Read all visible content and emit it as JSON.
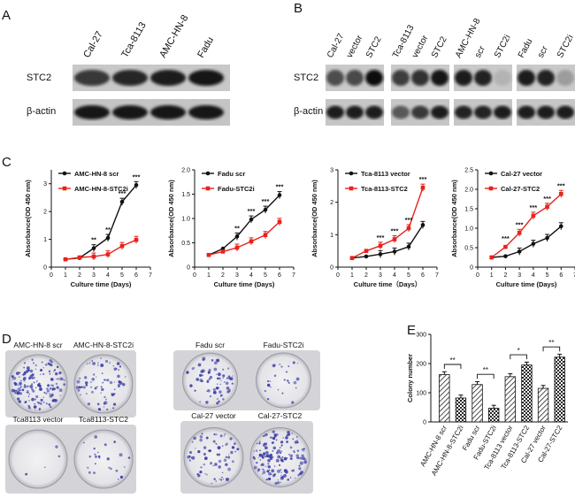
{
  "panels": {
    "A": "A",
    "B": "B",
    "C": "C",
    "D": "D",
    "E": "E"
  },
  "panel_a": {
    "lanes": [
      "Cal-27",
      "Tca-8113",
      "AMC-HN-8",
      "Fadu"
    ],
    "rows": [
      "STC2",
      "β-actin"
    ]
  },
  "panel_b": {
    "groups": [
      {
        "lanes": [
          "Cal-27",
          "vector",
          "STC2"
        ]
      },
      {
        "lanes": [
          "Tca-8113",
          "vector",
          "STC2"
        ]
      },
      {
        "lanes": [
          "AMC-HN-8",
          "scr",
          "STC2i"
        ]
      },
      {
        "lanes": [
          "Fadu",
          "scr",
          "STC2i"
        ]
      }
    ],
    "rows": [
      "STC2",
      "β-actin"
    ]
  },
  "chart_data": [
    {
      "type": "line",
      "xlabel": "Culture time (Days)",
      "ylabel": "Absorbance(OD 450 nm)",
      "xlim": [
        0,
        7
      ],
      "ylim": [
        0,
        3.5
      ],
      "yticks": [
        "0",
        "1",
        "2",
        "3"
      ],
      "x": [
        1,
        2,
        3,
        4,
        5,
        6
      ],
      "series": [
        {
          "name": "AMC-HN-8 scr",
          "color": "#111111",
          "values": [
            0.28,
            0.33,
            0.68,
            1.05,
            2.35,
            2.95
          ]
        },
        {
          "name": "AMC-HN-8-STC2i",
          "color": "#e8221c",
          "values": [
            0.28,
            0.35,
            0.38,
            0.46,
            0.76,
            0.98
          ]
        }
      ],
      "significance": [
        {
          "x": 3,
          "label": "**"
        },
        {
          "x": 4,
          "label": "**"
        },
        {
          "x": 5,
          "label": "***"
        },
        {
          "x": 6,
          "label": "***"
        }
      ]
    },
    {
      "type": "line",
      "xlabel": "Culture time (Days)",
      "ylabel": "Absorbance(OD 450 nm)",
      "xlim": [
        0,
        7
      ],
      "ylim": [
        0,
        2.0
      ],
      "yticks": [
        "0",
        "0.5",
        "1.0",
        "1.5",
        "2.0"
      ],
      "x": [
        1,
        2,
        3,
        4,
        5,
        6
      ],
      "series": [
        {
          "name": "Fadu scr",
          "color": "#111111",
          "values": [
            0.25,
            0.38,
            0.63,
            0.98,
            1.18,
            1.48
          ]
        },
        {
          "name": "Fadu-STC2i",
          "color": "#e8221c",
          "values": [
            0.25,
            0.32,
            0.4,
            0.53,
            0.66,
            0.93
          ]
        }
      ],
      "significance": [
        {
          "x": 3,
          "label": "**"
        },
        {
          "x": 4,
          "label": "***"
        },
        {
          "x": 5,
          "label": "***"
        },
        {
          "x": 6,
          "label": "***"
        }
      ]
    },
    {
      "type": "line",
      "xlabel": "Culture time（Days）",
      "ylabel": "Absorbance(OD 450 nm)",
      "xlim": [
        0,
        7
      ],
      "ylim": [
        0,
        3
      ],
      "yticks": [
        "0",
        "1",
        "2",
        "3"
      ],
      "x": [
        1,
        2,
        3,
        4,
        5,
        6
      ],
      "series": [
        {
          "name": "Tca-8113 vector",
          "color": "#111111",
          "values": [
            0.28,
            0.33,
            0.4,
            0.48,
            0.63,
            1.3
          ]
        },
        {
          "name": "Tca-8113-STC2",
          "color": "#e8221c",
          "values": [
            0.28,
            0.5,
            0.66,
            0.86,
            1.2,
            2.45
          ]
        }
      ],
      "significance": [
        {
          "x": 3,
          "label": "***"
        },
        {
          "x": 4,
          "label": "***"
        },
        {
          "x": 5,
          "label": "***"
        },
        {
          "x": 6,
          "label": "***"
        }
      ]
    },
    {
      "type": "line",
      "xlabel": "Culture time (Days)",
      "ylabel": "Absorbance(OD 450 nm)",
      "xlim": [
        0,
        7
      ],
      "ylim": [
        0,
        2.5
      ],
      "yticks": [
        "0",
        "0.5",
        "1.0",
        "1.5",
        "2.0",
        "2.5"
      ],
      "x": [
        1,
        2,
        3,
        4,
        5,
        6
      ],
      "series": [
        {
          "name": "Cal-27 vector",
          "color": "#111111",
          "values": [
            0.25,
            0.28,
            0.4,
            0.6,
            0.75,
            1.05
          ]
        },
        {
          "name": "Cal-27-STC2",
          "color": "#e8221c",
          "values": [
            0.25,
            0.52,
            0.88,
            1.32,
            1.55,
            1.88
          ]
        }
      ],
      "significance": [
        {
          "x": 2,
          "label": "***"
        },
        {
          "x": 3,
          "label": "***"
        },
        {
          "x": 4,
          "label": "***"
        },
        {
          "x": 5,
          "label": "***"
        },
        {
          "x": 6,
          "label": "***"
        }
      ]
    },
    {
      "type": "bar",
      "ylabel": "Colony number",
      "ylim": [
        0,
        300
      ],
      "yticks": [
        "0",
        "100",
        "200",
        "300"
      ],
      "categories": [
        "AMC-HN-8 scr",
        "AMC-HN-8-STC2i",
        "Fadu scr",
        "Fadu-STC2i",
        "Tca-8113 vector",
        "Tca-8113-STC2",
        "Cal-27 vector",
        "Cal-27-STC2"
      ],
      "values": [
        162,
        82,
        128,
        47,
        155,
        195,
        115,
        222
      ],
      "patterns": [
        "hatch",
        "check",
        "hatch",
        "check",
        "hatch",
        "check",
        "hatch",
        "check"
      ],
      "significance": [
        {
          "pair": [
            0,
            1
          ],
          "label": "**"
        },
        {
          "pair": [
            2,
            3
          ],
          "label": "**"
        },
        {
          "pair": [
            4,
            5
          ],
          "label": "*"
        },
        {
          "pair": [
            6,
            7
          ],
          "label": "**"
        }
      ]
    }
  ],
  "panel_d": {
    "plates": [
      {
        "label": "AMC-HN-8 scr",
        "density": "high"
      },
      {
        "label": "AMC-HN-8-STC2i",
        "density": "mid"
      },
      {
        "label": "Fadu scr",
        "density": "mid"
      },
      {
        "label": "Fadu-STC2i",
        "density": "low"
      },
      {
        "label": "Tca8113 vector",
        "density": "very-low"
      },
      {
        "label": "Tca8113-STC2",
        "density": "low"
      },
      {
        "label": "Cal-27 vector",
        "density": "mid"
      },
      {
        "label": "Cal-27-STC2",
        "density": "high"
      }
    ],
    "stain_color": "#3b3da8"
  }
}
